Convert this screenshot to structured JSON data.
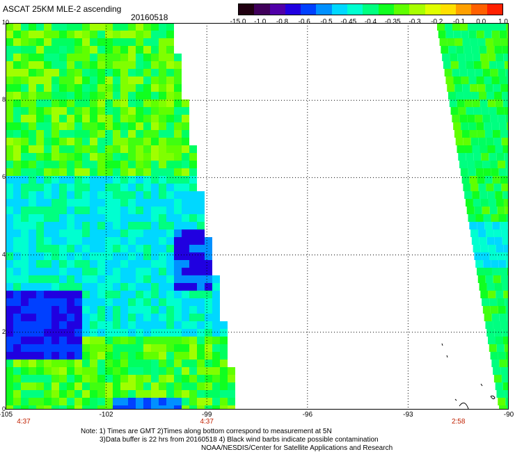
{
  "header": {
    "title": "ASCAT 25KM MLE-2 ascending",
    "date": "20160518"
  },
  "colorbar": {
    "labels": [
      "-15.0",
      "-1.0",
      "-0.8",
      "-0.6",
      "-0.5",
      "-0.45",
      "-0.4",
      "-0.35",
      "-0.3",
      "-0.2",
      "-0.1",
      "0.0",
      "1.0"
    ],
    "colors": [
      "#200010",
      "#40005a",
      "#5000a8",
      "#2000e0",
      "#0040ff",
      "#0090ff",
      "#00d8ff",
      "#00ffd0",
      "#00ff80",
      "#10ff20",
      "#60ff00",
      "#a8ff00",
      "#e0ff00",
      "#ffe000",
      "#ffa000",
      "#ff6000",
      "#ff2000"
    ]
  },
  "map": {
    "x_ticks": [
      "-105",
      "-102",
      "-99",
      "-96",
      "-93",
      "-90"
    ],
    "y_ticks": [
      "0",
      "2",
      "4",
      "6",
      "8",
      "10"
    ],
    "times": [
      {
        "label": "4:37",
        "lon": -105
      },
      {
        "label": "4:37",
        "lon": -99
      },
      {
        "label": "2:58",
        "lon": -91.5
      }
    ]
  },
  "notes": {
    "line1": "Note: 1) Times are GMT 2)Times along bottom correspond to measurement at 5N",
    "line2": "3)Data buffer is 22 hrs from 20160518 4) Black wind barbs indicate possible contamination",
    "line3": "NOAA/NESDIS/Center for Satellite Applications and Research"
  }
}
